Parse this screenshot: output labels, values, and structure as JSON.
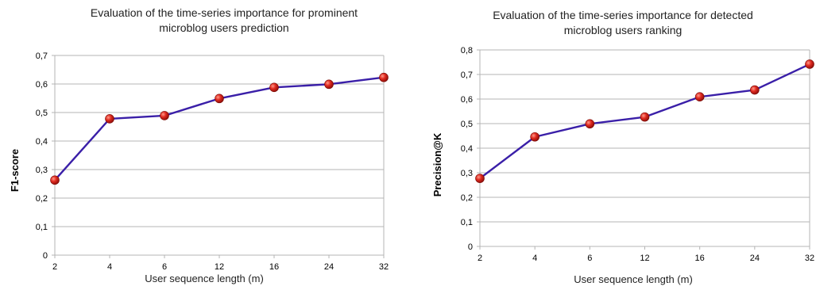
{
  "chart_data": [
    {
      "type": "line",
      "title": [
        "Evaluation of the time-series importance for prominent",
        "microblog users prediction"
      ],
      "xlabel": "User sequence length (m)",
      "ylabel": "F1-score",
      "categories": [
        "2",
        "4",
        "6",
        "12",
        "16",
        "24",
        "32"
      ],
      "series": [
        {
          "values": [
            0.263,
            0.478,
            0.489,
            0.549,
            0.588,
            0.599,
            0.623
          ]
        }
      ],
      "ylim": [
        0,
        0.7
      ],
      "yticks": [
        0,
        0.1,
        0.2,
        0.3,
        0.4,
        0.5,
        0.6,
        0.7
      ],
      "ytick_labels": [
        "0",
        "0,1",
        "0,2",
        "0,3",
        "0,4",
        "0,5",
        "0,6",
        "0,7"
      ],
      "grid": "horizontal",
      "legend": "none",
      "colors": {
        "line": "#3a1fa8",
        "marker": "#d42020",
        "grid": "#b4b4b4"
      }
    },
    {
      "type": "line",
      "title": [
        "Evaluation of the time-series importance for detected",
        "microblog users ranking"
      ],
      "xlabel": "User sequence length (m)",
      "ylabel": "Precision@K",
      "categories": [
        "2",
        "4",
        "6",
        "12",
        "16",
        "24",
        "32"
      ],
      "series": [
        {
          "values": [
            0.277,
            0.446,
            0.499,
            0.527,
            0.609,
            0.637,
            0.742
          ]
        }
      ],
      "ylim": [
        0,
        0.8
      ],
      "yticks": [
        0,
        0.1,
        0.2,
        0.3,
        0.4,
        0.5,
        0.6,
        0.7,
        0.8
      ],
      "ytick_labels": [
        "0",
        "0,1",
        "0,2",
        "0,3",
        "0,4",
        "0,5",
        "0,6",
        "0,7",
        "0,8"
      ],
      "grid": "horizontal",
      "legend": "none",
      "colors": {
        "line": "#3a1fa8",
        "marker": "#d42020",
        "grid": "#b4b4b4"
      }
    }
  ]
}
